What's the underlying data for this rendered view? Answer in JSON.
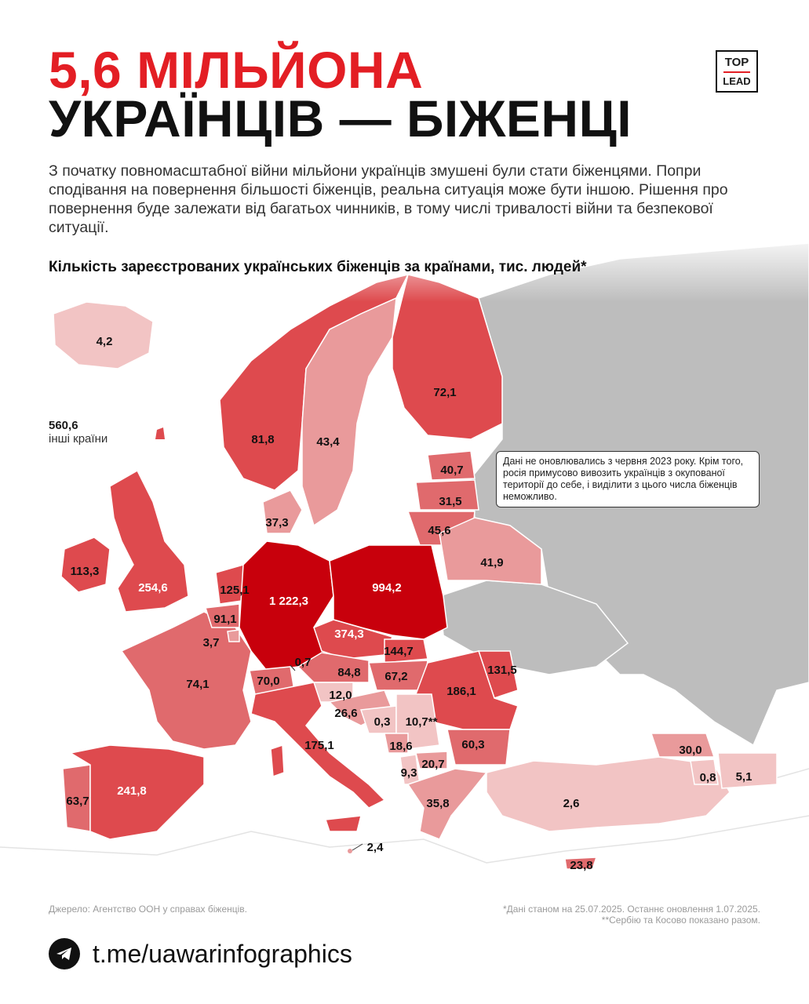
{
  "title": {
    "line1": "5,6 МІЛЬЙОНА",
    "line2": "УКРАЇНЦІВ — БІЖЕНЦІ"
  },
  "logo": {
    "line1": "TOP",
    "line2": "LEAD"
  },
  "intro": "З початку повномасштабної війни мільйони українців змушені були стати біженцями. Попри сподівання на повернення більшості біженців, реальна ситуація може бути іншою. Рішення про повернення буде залежати від багатьох чинників, в тому числі тривалості війни та безпекової ситуації.",
  "chart_heading": "Кількість зареєстрованих українських біженців за країнами, тис. людей*",
  "others": {
    "value": "560,6",
    "label": "інші країни"
  },
  "note": "Дані не оновлювались з червня 2023 року. Крім того, росія примусово вивозить українців з окупованої території до себе, і виділити з цього числа біженців неможливо.",
  "source": "Джерело: Агентство ООН у справах біженців.",
  "footnotes": [
    "*Дані станом на 25.07.2025. Останнє оновлення 1.07.2025.",
    "**Сербію та Косово показано разом."
  ],
  "telegram": {
    "icon": "telegram-icon",
    "link": "t.me/uawarinfographics"
  },
  "colors": {
    "accent": "#e31e24",
    "max": "#c8000c",
    "high": "#de4a4e",
    "mid": "#e06a6d",
    "low": "#e99a9b",
    "lowest": "#f2c4c4",
    "russia": "#bdbdbd"
  },
  "map_labels": [
    "4,2",
    "81,8",
    "43,4",
    "72,1",
    "40,7",
    "31,5",
    "45,6",
    "41,9",
    "37,3",
    "113,3",
    "254,6",
    "125,1",
    "91,1",
    "3,7",
    "1 222,3",
    "994,2",
    "374,3",
    "144,7",
    "0,7",
    "84,8",
    "67,2",
    "131,5",
    "186,1",
    "74,1",
    "70,0",
    "12,0",
    "26,6",
    "0,3",
    "10,7**",
    "60,3",
    "18,6",
    "20,7",
    "9,3",
    "175,1",
    "30,0",
    "0,8",
    "5,1",
    "63,7",
    "241,8",
    "35,8",
    "2,6",
    "2,4",
    "23,8"
  ]
}
